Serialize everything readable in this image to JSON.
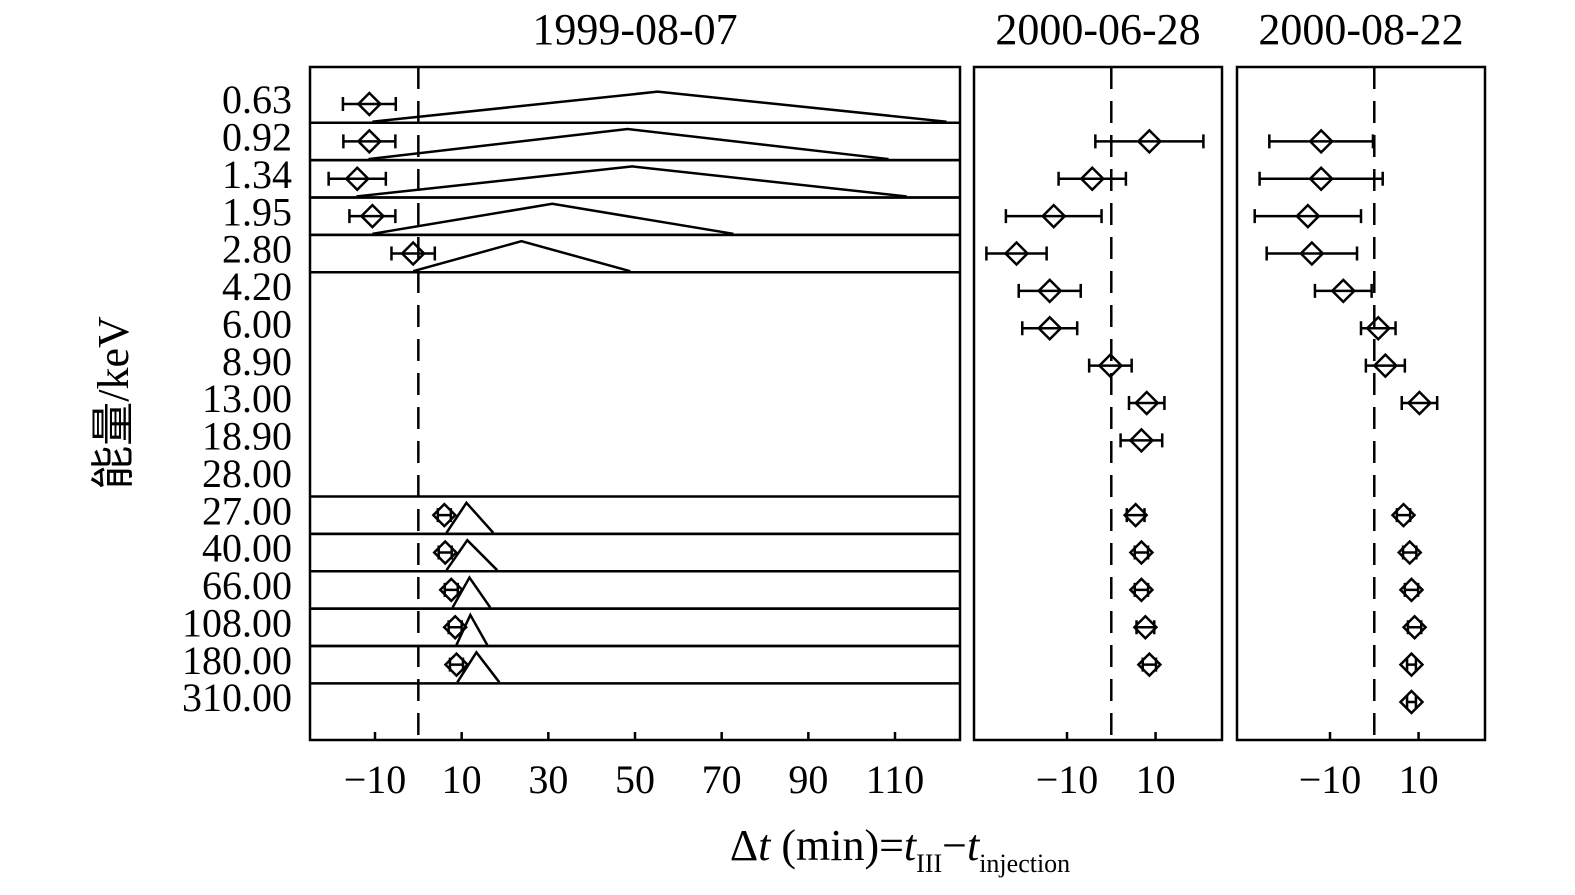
{
  "chart_data": [
    {
      "type": "scatter",
      "title": "1999-08-07",
      "ylabel": "能量/keV",
      "xlabel": [
        "Δ",
        "t",
        " (min)=",
        "t",
        "III",
        "−",
        "t",
        "injection"
      ],
      "categories": [
        "0.63",
        "0.92",
        "1.34",
        "1.95",
        "2.80",
        "4.20",
        "6.00",
        "8.90",
        "13.00",
        "18.90",
        "28.00",
        "27.00",
        "40.00",
        "66.00",
        "108.00",
        "180.00",
        "310.00"
      ],
      "xlim": [
        -25,
        125
      ],
      "xticks": [
        {
          "value": -10,
          "label": "−10"
        },
        10,
        30,
        50,
        70,
        90,
        110
      ],
      "reference_line": 0,
      "values": [
        -11.3,
        -11.3,
        -14.1,
        -10.6,
        -1.2,
        null,
        null,
        null,
        null,
        null,
        null,
        6.0,
        6.2,
        7.6,
        8.5,
        8.8,
        null
      ],
      "errors": [
        6.1,
        6.0,
        6.6,
        5.3,
        5.0,
        null,
        null,
        null,
        null,
        null,
        null,
        1.5,
        1.5,
        1.5,
        1.5,
        1.5,
        null
      ],
      "triangles": [
        {
          "start": -10.6,
          "peak": 55.2,
          "end": 121.9
        },
        {
          "start": -11.5,
          "peak": 48.3,
          "end": 108.5
        },
        {
          "start": -14.3,
          "peak": 49.4,
          "end": 112.7
        },
        {
          "start": -10.6,
          "peak": 30.9,
          "end": 72.7
        },
        {
          "start": -1.2,
          "peak": 23.8,
          "end": 48.9
        },
        null,
        null,
        null,
        null,
        null,
        null,
        {
          "start": 6.5,
          "peak": 11.1,
          "end": 17.3
        },
        {
          "start": 6.5,
          "peak": 11.3,
          "end": 18.2
        },
        {
          "start": 7.9,
          "peak": 11.8,
          "end": 16.6
        },
        {
          "start": 8.8,
          "peak": 12.0,
          "end": 15.9
        },
        {
          "start": 9.0,
          "peak": 13.4,
          "end": 18.7
        },
        null
      ]
    },
    {
      "type": "scatter",
      "title": "2000-06-28",
      "xlim": [
        -31,
        25
      ],
      "xticks": [
        {
          "value": -10,
          "label": "−10"
        },
        10
      ],
      "reference_line": 0,
      "values": [
        null,
        8.6,
        -4.3,
        -13.0,
        -21.4,
        -13.9,
        -13.9,
        -0.2,
        8.0,
        6.8,
        null,
        5.5,
        6.8,
        6.8,
        7.7,
        8.6,
        null
      ],
      "errors": [
        null,
        12.2,
        7.6,
        10.8,
        6.8,
        7.0,
        6.2,
        4.8,
        4.0,
        4.7,
        null,
        2.0,
        1.5,
        1.5,
        2.0,
        1.5,
        null
      ]
    },
    {
      "type": "scatter",
      "title": "2000-08-22",
      "xlim": [
        -31,
        25
      ],
      "xticks": [
        {
          "value": -10,
          "label": "−10"
        },
        10
      ],
      "reference_line": 0,
      "values": [
        null,
        -12.0,
        -12.0,
        -15.0,
        -14.1,
        -7.0,
        0.9,
        2.5,
        10.2,
        null,
        null,
        6.6,
        8.0,
        8.4,
        9.1,
        8.4,
        8.4
      ],
      "errors": [
        null,
        11.7,
        13.9,
        12.0,
        10.2,
        6.4,
        3.9,
        4.4,
        4.0,
        null,
        null,
        1.5,
        1.5,
        1.5,
        1.5,
        1.0,
        1.0
      ]
    }
  ]
}
